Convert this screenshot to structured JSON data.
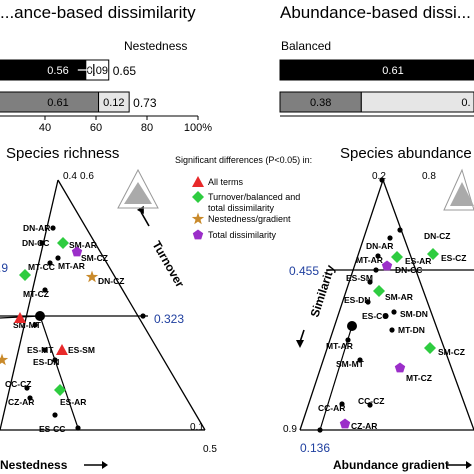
{
  "chart_data": [
    {
      "type": "bar",
      "title": "...ance-based dissimilarity",
      "label_top": "Nestedness",
      "orientation": "horizontal-stacked",
      "xlim": [
        0,
        100
      ],
      "xticks": [
        "40",
        "60",
        "80",
        "100%"
      ],
      "rows": [
        {
          "segments": [
            {
              "value": 0.56,
              "label": "0.56",
              "color": "#000000"
            },
            {
              "value": 0.09,
              "label": "0.09",
              "color": "#ffffff"
            }
          ],
          "total": "0.65",
          "error_bar": true
        },
        {
          "segments": [
            {
              "value": 0.61,
              "label": "0.61",
              "color": "#7f7f7f"
            },
            {
              "value": 0.12,
              "label": "0.12",
              "color": "#e6e6e6"
            }
          ],
          "total": "0.73",
          "error_bar": false
        }
      ]
    },
    {
      "type": "bar",
      "title": "Abundance-based dissi...",
      "label_top": "Balanced",
      "orientation": "horizontal-stacked",
      "rows": [
        {
          "segments": [
            {
              "value": 0.61,
              "label": "0.61",
              "color": "#000000"
            }
          ],
          "total": ""
        },
        {
          "segments": [
            {
              "value": 0.38,
              "label": "0.38",
              "color": "#7f7f7f"
            },
            {
              "value": 0.0,
              "label": "0.",
              "color": "#e6e6e6"
            }
          ],
          "total": ""
        }
      ]
    },
    {
      "type": "scatter",
      "subtype": "ternary",
      "title": "Species richness",
      "axis_labels": {
        "top": "0.4",
        "top2": "0.6",
        "right_axis": "Turnover",
        "bottom_axis": "Nestedness",
        "br1": "0.1",
        "br2": "0.5"
      },
      "reference_values": {
        "horizontal": "0.323",
        "left": ".9"
      },
      "points": [
        {
          "label": "DN-AR",
          "symbol": "circle"
        },
        {
          "label": "DN-CC",
          "symbol": "circle"
        },
        {
          "label": "SM-AR",
          "symbol": "diamond"
        },
        {
          "label": "MT-CC",
          "symbol": "circle"
        },
        {
          "label": "MT-AR",
          "symbol": "circle"
        },
        {
          "label": "SM-CZ",
          "symbol": "pentagon"
        },
        {
          "label": "MT-CZ",
          "symbol": "circle"
        },
        {
          "label": "DN-CZ",
          "symbol": "star"
        },
        {
          "label": "SM-MT",
          "symbol": "circle"
        },
        {
          "label": "ES-MT",
          "symbol": "circle"
        },
        {
          "label": "ES-SM",
          "symbol": "triangle"
        },
        {
          "label": "ES-DN",
          "symbol": "circle"
        },
        {
          "label": "CC-CZ",
          "symbol": "circle"
        },
        {
          "label": "CZ-AR",
          "symbol": "circle"
        },
        {
          "label": "ES-AR",
          "symbol": "diamond"
        },
        {
          "label": "ES-CC",
          "symbol": "circle"
        }
      ]
    },
    {
      "type": "scatter",
      "subtype": "ternary",
      "title": "Species abundance",
      "axis_labels": {
        "top": "0.2",
        "top2": "0.8",
        "left_axis": "Similarity",
        "bottom_axis": "Abundance gradient",
        "bl": "0.9"
      },
      "reference_values": {
        "horizontal": "0.455",
        "bottom": "0.136"
      },
      "points": [
        {
          "label": "DN-AR",
          "symbol": "circle"
        },
        {
          "label": "DN-CZ",
          "symbol": "circle"
        },
        {
          "label": "MT-AR",
          "symbol": "circle"
        },
        {
          "label": "DN-CC",
          "symbol": "pentagon"
        },
        {
          "label": "ES-CZ",
          "symbol": "diamond"
        },
        {
          "label": "ES-SM",
          "symbol": "circle"
        },
        {
          "label": "ES-AR",
          "symbol": "diamond"
        },
        {
          "label": "ES-DN",
          "symbol": "circle"
        },
        {
          "label": "SM-AR",
          "symbol": "diamond"
        },
        {
          "label": "SM-DN",
          "symbol": "circle"
        },
        {
          "label": "ES-CC",
          "symbol": "circle"
        },
        {
          "label": "MT-DN",
          "symbol": "circle"
        },
        {
          "label": "MT-AR",
          "symbol": "circle"
        },
        {
          "label": "SM-CZ",
          "symbol": "diamond"
        },
        {
          "label": "SM-MT",
          "symbol": "circle"
        },
        {
          "label": "MT-CZ",
          "symbol": "pentagon"
        },
        {
          "label": "CC-AR",
          "symbol": "circle"
        },
        {
          "label": "CC-CZ",
          "symbol": "circle"
        },
        {
          "label": "CZ-AR",
          "symbol": "pentagon"
        }
      ]
    }
  ],
  "legend": {
    "title": "Significant differences (P<0.05) in:",
    "entries": [
      {
        "symbol": "triangle",
        "color": "#e8292a",
        "label": "All terms"
      },
      {
        "symbol": "diamond",
        "color": "#2ecc40",
        "label": "Turnover/balanced and"
      },
      {
        "symbol": "none",
        "color": "",
        "label": "total dissimilarity"
      },
      {
        "symbol": "star",
        "color": "#c98a2b",
        "label": "Nestedness/gradient"
      },
      {
        "symbol": "pentagon",
        "color": "#9b2ec9",
        "label": "Total dissimilarity"
      }
    ]
  },
  "colors": {
    "highlight_blue": "#1f3f9f",
    "diamond": "#2ecc40",
    "pentagon": "#9b2ec9",
    "triangle": "#e8292a",
    "star": "#c98a2b"
  }
}
